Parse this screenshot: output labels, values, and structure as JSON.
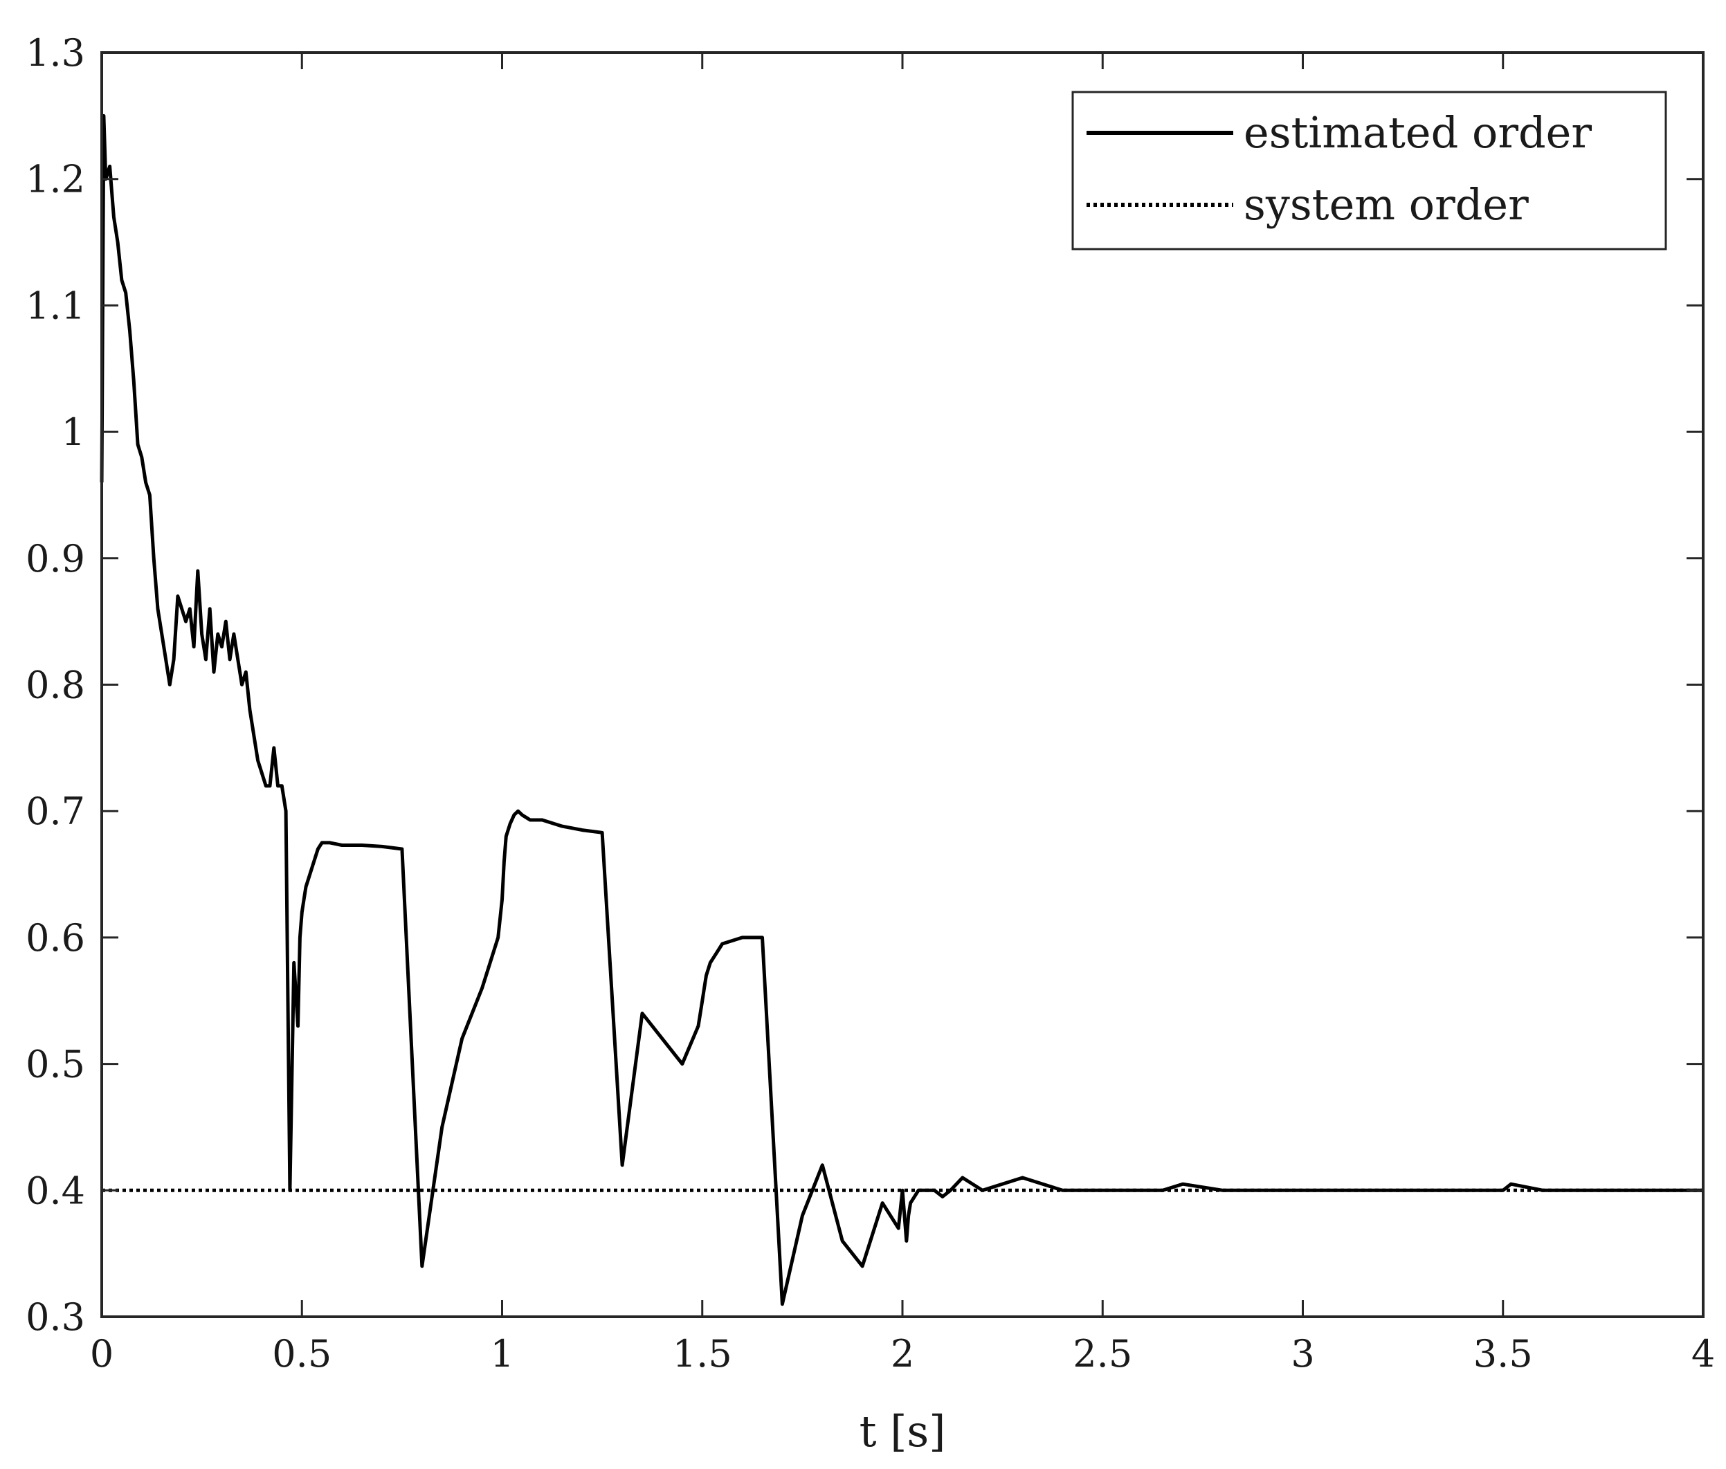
{
  "chart_data": {
    "type": "line",
    "title": "",
    "xlabel": "t [s]",
    "ylabel": "",
    "xlim": [
      0,
      4
    ],
    "ylim": [
      0.3,
      1.3
    ],
    "xticks": [
      0,
      0.5,
      1,
      1.5,
      2,
      2.5,
      3,
      3.5,
      4
    ],
    "xtick_labels": [
      "0",
      "0.5",
      "1",
      "1.5",
      "2",
      "2.5",
      "3",
      "3.5",
      "4"
    ],
    "yticks": [
      0.3,
      0.4,
      0.5,
      0.6,
      0.7,
      0.8,
      0.9,
      1,
      1.1,
      1.2,
      1.3
    ],
    "ytick_labels": [
      "0.3",
      "0.4",
      "0.5",
      "0.6",
      "0.7",
      "0.8",
      "0.9",
      "1",
      "1.1",
      "1.2",
      "1.3"
    ],
    "grid": false,
    "legend_position": "top-right",
    "series": [
      {
        "name": "estimated order",
        "style": "solid",
        "color": "#000000",
        "x": [
          0,
          0.005,
          0.01,
          0.02,
          0.03,
          0.04,
          0.05,
          0.06,
          0.07,
          0.08,
          0.09,
          0.1,
          0.11,
          0.12,
          0.13,
          0.14,
          0.15,
          0.16,
          0.17,
          0.18,
          0.19,
          0.2,
          0.21,
          0.22,
          0.23,
          0.24,
          0.25,
          0.26,
          0.27,
          0.28,
          0.29,
          0.3,
          0.31,
          0.32,
          0.33,
          0.34,
          0.35,
          0.36,
          0.37,
          0.38,
          0.39,
          0.4,
          0.41,
          0.42,
          0.43,
          0.44,
          0.45,
          0.46,
          0.47,
          0.48,
          0.49,
          0.495,
          0.5,
          0.505,
          0.51,
          0.52,
          0.53,
          0.54,
          0.55,
          0.57,
          0.6,
          0.65,
          0.7,
          0.75,
          0.8,
          0.85,
          0.9,
          0.95,
          0.99,
          1.0,
          1.005,
          1.01,
          1.02,
          1.03,
          1.04,
          1.05,
          1.07,
          1.1,
          1.15,
          1.2,
          1.25,
          1.3,
          1.35,
          1.4,
          1.45,
          1.49,
          1.5,
          1.505,
          1.51,
          1.52,
          1.53,
          1.54,
          1.55,
          1.57,
          1.6,
          1.65,
          1.7,
          1.75,
          1.8,
          1.85,
          1.9,
          1.95,
          1.99,
          2.0,
          2.005,
          2.01,
          2.015,
          2.02,
          2.03,
          2.04,
          2.05,
          2.06,
          2.07,
          2.08,
          2.1,
          2.12,
          2.15,
          2.2,
          2.3,
          2.4,
          2.45,
          2.5,
          2.52,
          2.55,
          2.6,
          2.65,
          2.7,
          2.8,
          2.9,
          3.0,
          3.1,
          3.2,
          3.3,
          3.4,
          3.5,
          3.52,
          3.6,
          3.7,
          3.8,
          3.9,
          4.0
        ],
        "values": [
          0.96,
          1.25,
          1.2,
          1.21,
          1.17,
          1.15,
          1.12,
          1.11,
          1.08,
          1.04,
          0.99,
          0.98,
          0.96,
          0.95,
          0.9,
          0.86,
          0.84,
          0.82,
          0.8,
          0.82,
          0.87,
          0.86,
          0.85,
          0.86,
          0.83,
          0.89,
          0.84,
          0.82,
          0.86,
          0.81,
          0.84,
          0.83,
          0.85,
          0.82,
          0.84,
          0.82,
          0.8,
          0.81,
          0.78,
          0.76,
          0.74,
          0.73,
          0.72,
          0.72,
          0.75,
          0.72,
          0.72,
          0.7,
          0.4,
          0.58,
          0.53,
          0.6,
          0.62,
          0.63,
          0.64,
          0.65,
          0.66,
          0.67,
          0.675,
          0.675,
          0.673,
          0.673,
          0.672,
          0.67,
          0.34,
          0.45,
          0.52,
          0.56,
          0.6,
          0.63,
          0.66,
          0.68,
          0.69,
          0.697,
          0.7,
          0.697,
          0.693,
          0.693,
          0.688,
          0.685,
          0.683,
          0.42,
          0.54,
          0.52,
          0.5,
          0.53,
          0.55,
          0.56,
          0.57,
          0.58,
          0.585,
          0.59,
          0.595,
          0.597,
          0.6,
          0.6,
          0.31,
          0.38,
          0.42,
          0.36,
          0.34,
          0.39,
          0.37,
          0.4,
          0.38,
          0.36,
          0.38,
          0.39,
          0.395,
          0.4,
          0.4,
          0.4,
          0.4,
          0.4,
          0.395,
          0.4,
          0.41,
          0.4,
          0.41,
          0.4,
          0.4,
          0.4,
          0.4,
          0.4,
          0.4,
          0.4,
          0.405,
          0.4,
          0.4,
          0.4,
          0.4,
          0.4,
          0.4,
          0.4,
          0.4,
          0.405,
          0.4,
          0.4,
          0.4,
          0.4,
          0.4
        ]
      },
      {
        "name": "system order",
        "style": "dotted",
        "color": "#000000",
        "x": [
          0,
          4
        ],
        "values": [
          0.4,
          0.4
        ]
      }
    ]
  }
}
